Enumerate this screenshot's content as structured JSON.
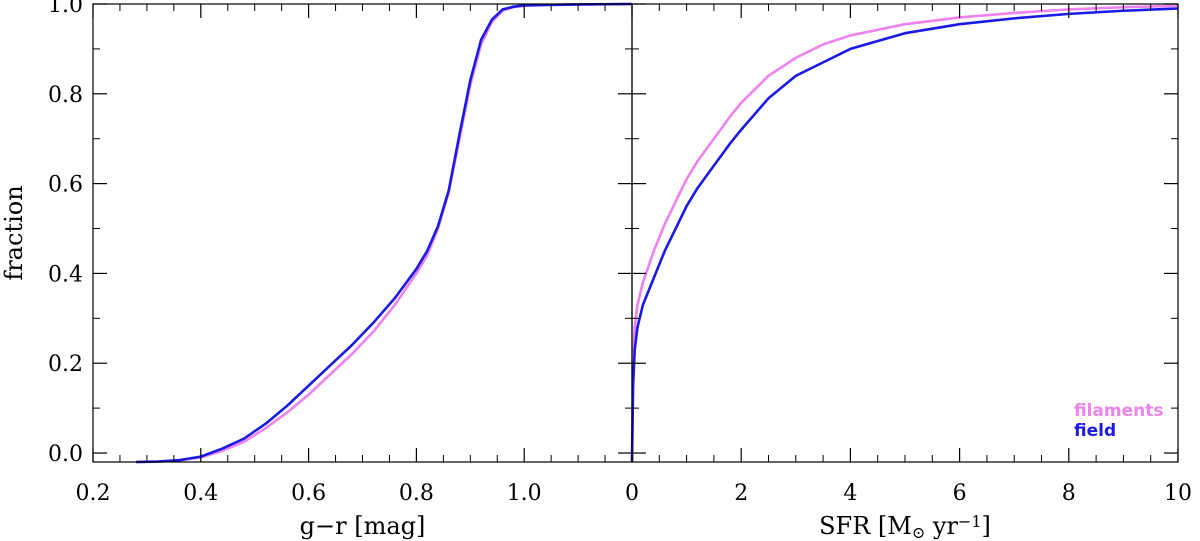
{
  "chart_data": [
    {
      "type": "line",
      "xlabel": "g−r [mag]",
      "ylabel": "fraction",
      "xlim": [
        0.2,
        1.2
      ],
      "ylim": [
        -0.02,
        1.0
      ],
      "xticks": [
        0.2,
        0.4,
        0.6,
        0.8,
        1.0
      ],
      "xtick_labels": [
        "0.2",
        "0.4",
        "0.6",
        "0.8",
        "1.0"
      ],
      "yticks": [
        0.0,
        0.2,
        0.4,
        0.6,
        0.8,
        1.0
      ],
      "ytick_labels": [
        "0.0",
        "0.2",
        "0.4",
        "0.6",
        "0.8",
        "1.0"
      ],
      "series": [
        {
          "name": "filaments",
          "color": "#ee82ee",
          "x": [
            0.28,
            0.32,
            0.36,
            0.4,
            0.44,
            0.48,
            0.52,
            0.56,
            0.6,
            0.64,
            0.68,
            0.72,
            0.76,
            0.8,
            0.82,
            0.84,
            0.86,
            0.88,
            0.9,
            0.92,
            0.94,
            0.96,
            0.98,
            1.0,
            1.04,
            1.1,
            1.2
          ],
          "y": [
            -0.02,
            -0.019,
            -0.016,
            -0.01,
            0.005,
            0.025,
            0.055,
            0.09,
            0.13,
            0.175,
            0.22,
            0.27,
            0.33,
            0.4,
            0.44,
            0.5,
            0.58,
            0.7,
            0.82,
            0.91,
            0.96,
            0.985,
            0.993,
            0.996,
            0.998,
            0.999,
            1.0
          ]
        },
        {
          "name": "field",
          "color": "#1a1ae6",
          "x": [
            0.28,
            0.32,
            0.36,
            0.4,
            0.44,
            0.48,
            0.52,
            0.56,
            0.6,
            0.64,
            0.68,
            0.72,
            0.76,
            0.8,
            0.82,
            0.84,
            0.86,
            0.88,
            0.9,
            0.92,
            0.94,
            0.96,
            0.98,
            1.0,
            1.04,
            1.1,
            1.2
          ],
          "y": [
            -0.02,
            -0.019,
            -0.016,
            -0.008,
            0.01,
            0.032,
            0.065,
            0.105,
            0.15,
            0.195,
            0.24,
            0.29,
            0.345,
            0.41,
            0.45,
            0.505,
            0.585,
            0.71,
            0.83,
            0.92,
            0.965,
            0.988,
            0.994,
            0.997,
            0.998,
            0.999,
            1.0
          ]
        }
      ]
    },
    {
      "type": "line",
      "xlabel": "SFR [M",
      "xlabel_sub": "⊙",
      "xlabel_mid": " yr",
      "xlabel_sup": "−1",
      "xlabel_end": "]",
      "ylabel": "",
      "xlim": [
        0,
        10
      ],
      "ylim": [
        -0.02,
        1.0
      ],
      "xticks": [
        0,
        2,
        4,
        6,
        8,
        10
      ],
      "xtick_labels": [
        "0",
        "2",
        "4",
        "6",
        "8",
        "10"
      ],
      "yticks": [
        0.0,
        0.2,
        0.4,
        0.6,
        0.8,
        1.0
      ],
      "legend": {
        "position": "bottom-right",
        "entries": [
          "filaments",
          "field"
        ]
      },
      "series": [
        {
          "name": "filaments",
          "color": "#ee82ee",
          "x": [
            0.0,
            0.02,
            0.05,
            0.1,
            0.2,
            0.4,
            0.6,
            0.8,
            1.0,
            1.2,
            1.5,
            1.8,
            2.0,
            2.5,
            3.0,
            3.5,
            4.0,
            5.0,
            6.0,
            7.0,
            8.0,
            9.0,
            10.0
          ],
          "y": [
            -0.02,
            0.2,
            0.28,
            0.33,
            0.38,
            0.45,
            0.51,
            0.56,
            0.61,
            0.65,
            0.7,
            0.75,
            0.78,
            0.84,
            0.88,
            0.91,
            0.93,
            0.955,
            0.97,
            0.98,
            0.988,
            0.993,
            0.996
          ]
        },
        {
          "name": "field",
          "color": "#1a1ae6",
          "x": [
            0.0,
            0.02,
            0.05,
            0.1,
            0.2,
            0.4,
            0.6,
            0.8,
            1.0,
            1.2,
            1.5,
            1.8,
            2.0,
            2.5,
            3.0,
            3.5,
            4.0,
            5.0,
            6.0,
            7.0,
            8.0,
            9.0,
            10.0
          ],
          "y": [
            -0.02,
            0.15,
            0.23,
            0.28,
            0.33,
            0.39,
            0.45,
            0.5,
            0.55,
            0.59,
            0.64,
            0.69,
            0.72,
            0.79,
            0.84,
            0.87,
            0.9,
            0.935,
            0.955,
            0.968,
            0.978,
            0.985,
            0.99
          ]
        }
      ]
    }
  ]
}
